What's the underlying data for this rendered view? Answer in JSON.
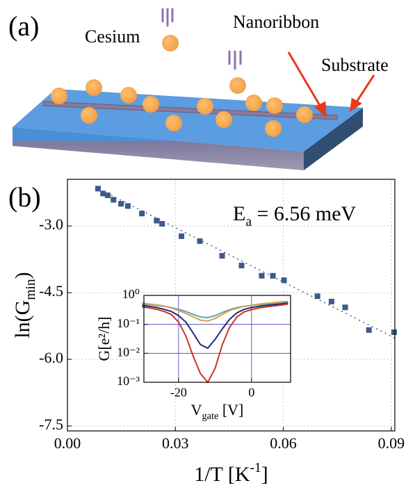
{
  "panel_a": {
    "label": "(a)",
    "cesium": "Cesium",
    "nanoribbon": "Nanoribbon",
    "substrate": "Substrate"
  },
  "chart_data": [
    {
      "type": "scatter",
      "panel_label": "(b)",
      "annotation": {
        "base": "E",
        "sub": "a",
        "rest": " = 6.56 meV"
      },
      "x_label": {
        "base": "1/T [K",
        "sup": "-1",
        "rest": "]"
      },
      "y_label": {
        "base": "ln(G",
        "sub": "min",
        "rest": ")"
      },
      "xlim": [
        0,
        0.091
      ],
      "ylim": [
        -7.61,
        -1.95
      ],
      "xticks": [
        {
          "value": 0,
          "label": "0.00"
        },
        {
          "value": 0.03,
          "label": "0.03"
        },
        {
          "value": 0.06,
          "label": "0.06"
        },
        {
          "value": 0.09,
          "label": "0.09"
        }
      ],
      "yticks": [
        {
          "value": -3,
          "label": "-3.0"
        },
        {
          "value": -4.5,
          "label": "-4.5"
        },
        {
          "value": -6,
          "label": "-6.0"
        },
        {
          "value": -7.5,
          "label": "-7.5"
        }
      ],
      "grid": true,
      "color": "#3d5a8a",
      "x": [
        0.0085,
        0.0099,
        0.0112,
        0.0128,
        0.0149,
        0.0168,
        0.0207,
        0.0248,
        0.0263,
        0.0317,
        0.0368,
        0.043,
        0.0484,
        0.054,
        0.0571,
        0.0602,
        0.0695,
        0.0734,
        0.0772,
        0.0838,
        0.0908
      ],
      "values": [
        -2.16,
        -2.27,
        -2.31,
        -2.41,
        -2.5,
        -2.55,
        -2.72,
        -2.88,
        -2.95,
        -3.23,
        -3.34,
        -3.67,
        -3.89,
        -4.12,
        -4.12,
        -4.22,
        -4.58,
        -4.7,
        -4.83,
        -5.34,
        -5.39
      ],
      "fit": {
        "x": [
          0.0085,
          0.0912
        ],
        "values": [
          -2.16,
          -5.53
        ]
      }
    },
    {
      "type": "line",
      "log_y": true,
      "grid": true,
      "x_label": {
        "base": "V",
        "sub": "gate",
        "rest": " [V]"
      },
      "y_label": "G[e²/h]",
      "xlim": [
        -29.5,
        10.7
      ],
      "ylim": [
        0.001,
        1
      ],
      "xticks": [
        -20,
        0
      ],
      "yticks": [
        {
          "value": 1,
          "label": "10⁰"
        },
        {
          "value": 0.1,
          "label": "10⁻¹"
        },
        {
          "value": 0.01,
          "label": "10⁻²"
        },
        {
          "value": 0.001,
          "label": "10⁻³"
        }
      ],
      "x": [
        -30,
        -28,
        -26,
        -24,
        -22,
        -20,
        -18,
        -16,
        -14,
        -12,
        -10,
        -8,
        -6,
        -4,
        -2,
        0,
        2,
        4,
        6,
        8,
        10
      ],
      "series": [
        {
          "color": "#5fa8a8",
          "values": [
            0.5,
            0.48,
            0.45,
            0.42,
            0.38,
            0.33,
            0.28,
            0.22,
            0.18,
            0.17,
            0.2,
            0.26,
            0.32,
            0.38,
            0.42,
            0.45,
            0.48,
            0.5,
            0.52,
            0.55,
            0.58
          ]
        },
        {
          "color": "#d4a050",
          "values": [
            0.55,
            0.5,
            0.47,
            0.43,
            0.37,
            0.3,
            0.24,
            0.18,
            0.14,
            0.13,
            0.16,
            0.22,
            0.3,
            0.36,
            0.42,
            0.46,
            0.5,
            0.53,
            0.56,
            0.6,
            0.62
          ]
        },
        {
          "color": "#1f2a78",
          "values": [
            0.45,
            0.42,
            0.38,
            0.33,
            0.28,
            0.2,
            0.12,
            0.05,
            0.02,
            0.015,
            0.03,
            0.07,
            0.15,
            0.25,
            0.33,
            0.38,
            0.42,
            0.45,
            0.48,
            0.5,
            0.55
          ]
        },
        {
          "color": "#cc3322",
          "values": [
            0.4,
            0.37,
            0.33,
            0.28,
            0.22,
            0.12,
            0.04,
            0.008,
            0.002,
            0.001,
            0.003,
            0.02,
            0.08,
            0.18,
            0.27,
            0.32,
            0.37,
            0.4,
            0.43,
            0.46,
            0.5
          ]
        }
      ]
    }
  ]
}
